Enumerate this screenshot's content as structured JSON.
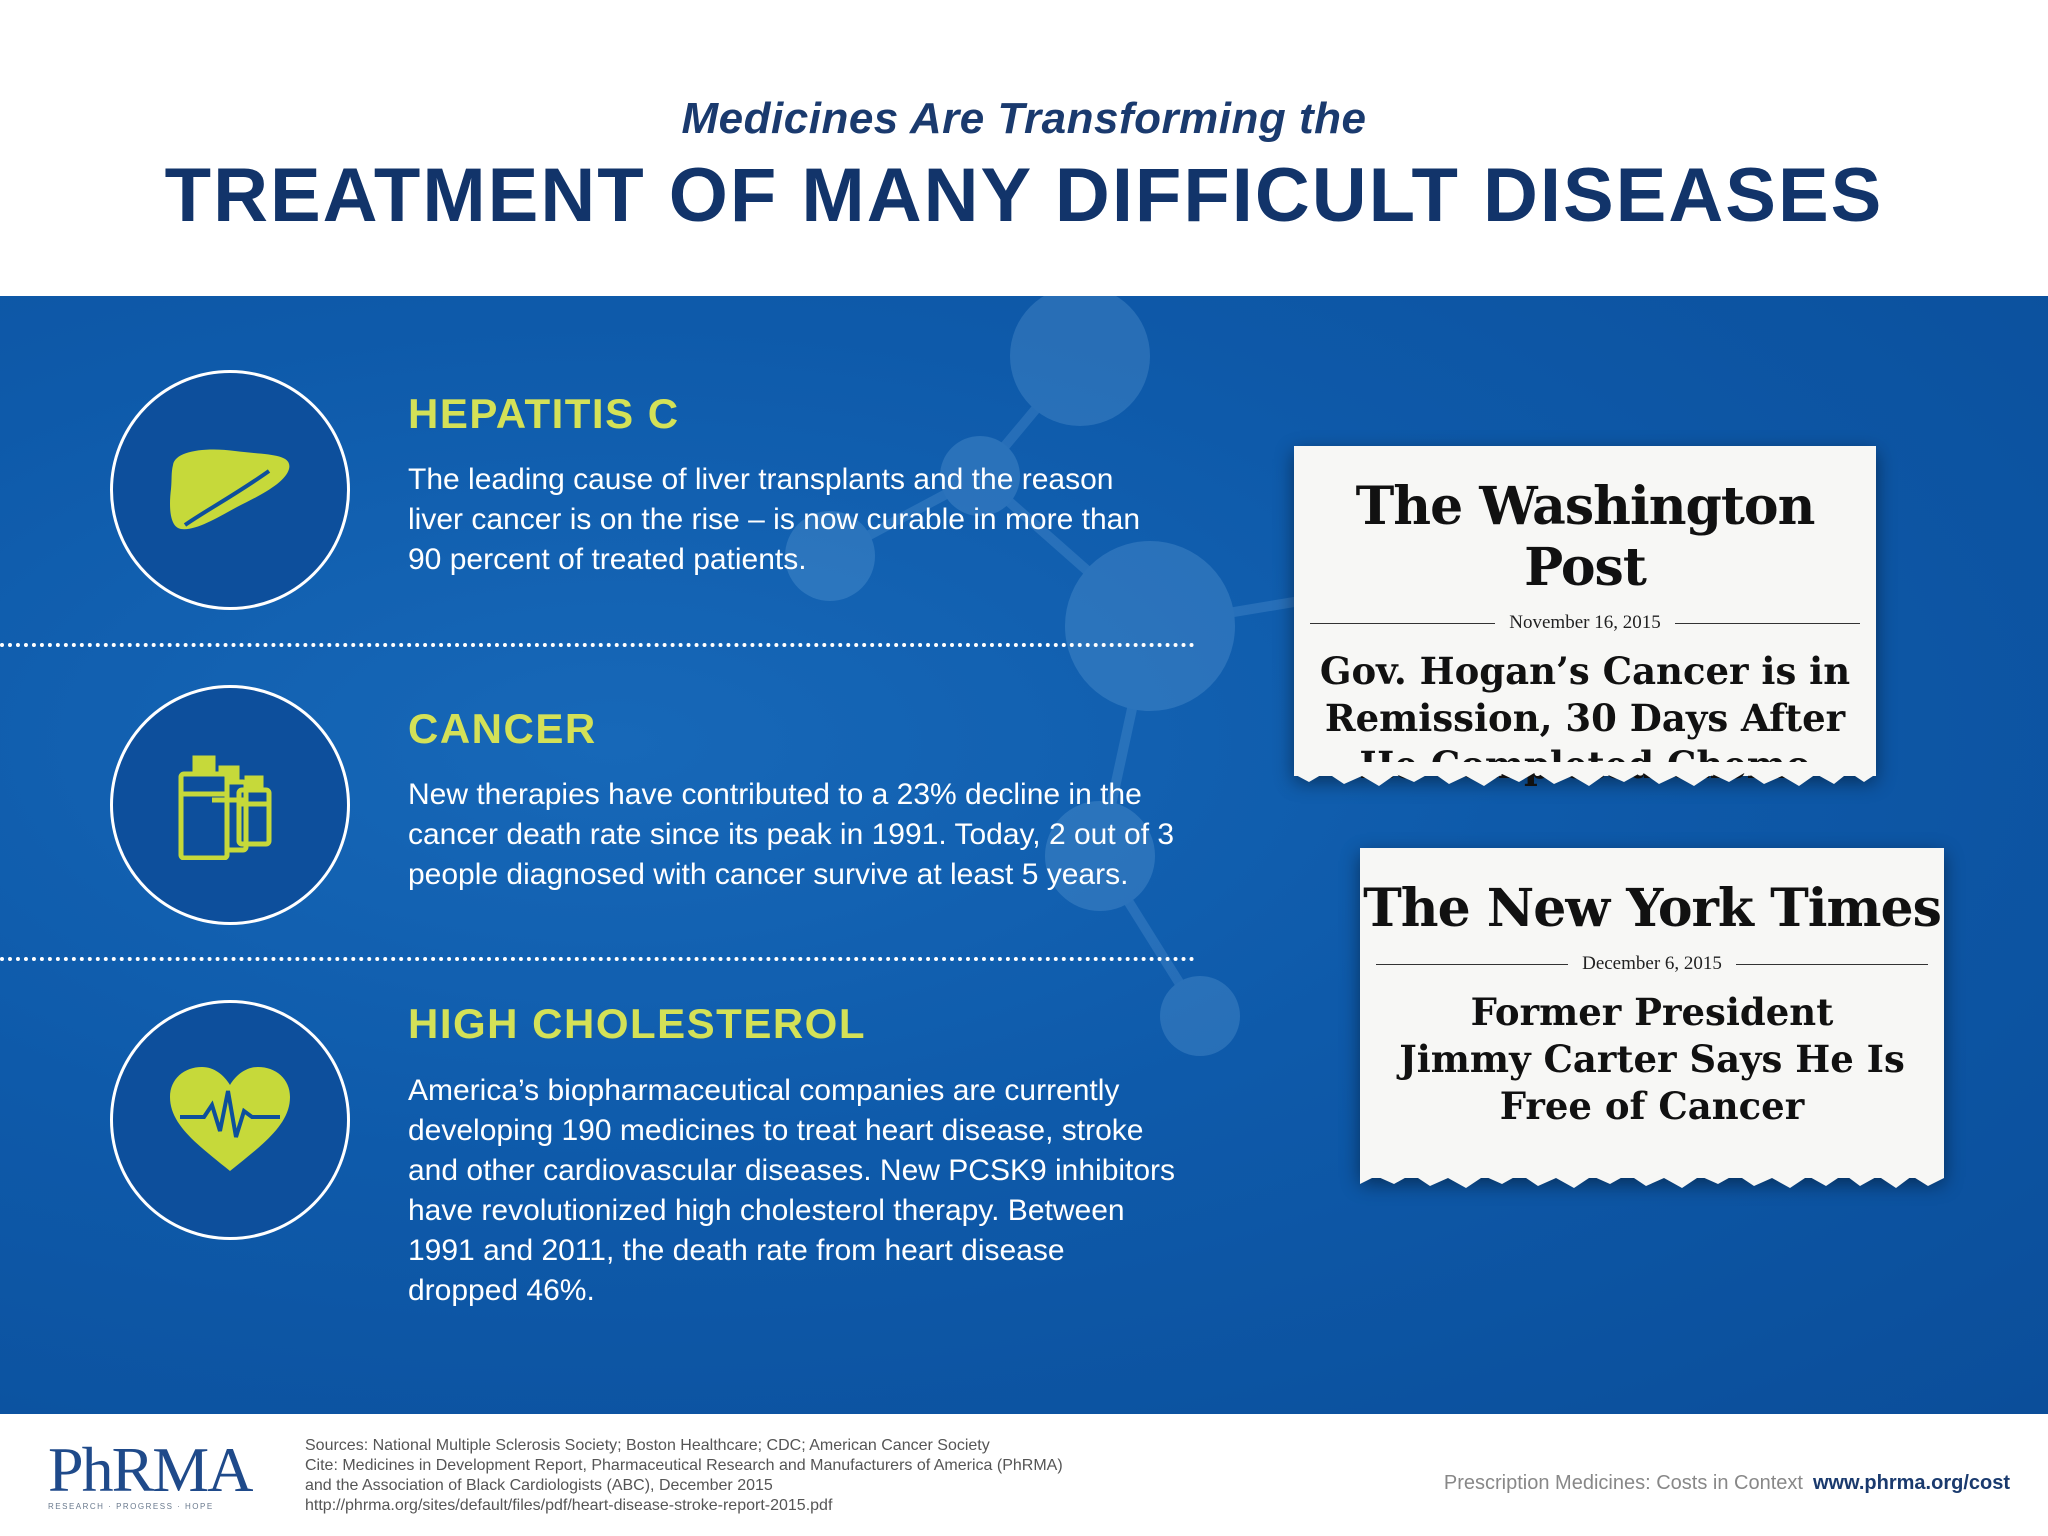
{
  "header": {
    "subtitle": "Medicines Are Transforming the",
    "title": "TREATMENT OF MANY DIFFICULT DISEASES"
  },
  "diseases": [
    {
      "title": "HEPATITIS C",
      "lines": [
        "The leading cause of liver transplants and the reason",
        "liver cancer is on the rise – is now curable in more than",
        "90 percent of treated patients."
      ],
      "icon": "liver-icon"
    },
    {
      "title": "CANCER",
      "lines": [
        "New therapies have contributed to a 23% decline in the",
        "cancer death rate since its peak in 1991. Today, 2 out of 3",
        "people diagnosed with cancer survive at least 5 years."
      ],
      "icon": "medicine-bottles-icon"
    },
    {
      "title": "HIGH CHOLESTEROL",
      "lines": [
        "America’s biopharmaceutical companies are currently",
        "developing 190 medicines to treat heart disease, stroke",
        "and other cardiovascular diseases. New PCSK9 inhibitors",
        "have revolutionized high cholesterol therapy. Between",
        "1991 and 2011, the death rate from heart disease",
        "dropped 46%."
      ],
      "icon": "heart-pulse-icon"
    }
  ],
  "clippings": [
    {
      "masthead": "The Washington Post",
      "date": "November 16, 2015",
      "headline_lines": [
        "Gov. Hogan’s Cancer is in",
        "Remission, 30 Days After",
        "He Completed Chemo"
      ]
    },
    {
      "masthead": "The New York Times",
      "date": "December 6, 2015",
      "headline_lines": [
        "Former President",
        "Jimmy Carter Says He Is",
        "Free of Cancer"
      ]
    }
  ],
  "footer": {
    "logo": "PhRMA",
    "logo_tagline": "RESEARCH · PROGRESS · HOPE",
    "sources": [
      "Sources: National Multiple Sclerosis Society; Boston Healthcare; CDC; American Cancer Society",
      "Cite: Medicines in Development Report, Pharmaceutical Research and Manufacturers of America (PhRMA)",
      "and the Association of Black Cardiologists (ABC), December 2015",
      "http://phrma.org/sites/default/files/pdf/heart-disease-stroke-report-2015.pdf"
    ],
    "context_label": "Prescription Medicines: Costs in Context",
    "context_url": "www.phrma.org/cost"
  },
  "colors": {
    "navy": "#12346a",
    "panel_blue": "#0e5aaa",
    "accent_yellow": "#d4e157",
    "icon_lime": "#c6d93a"
  }
}
